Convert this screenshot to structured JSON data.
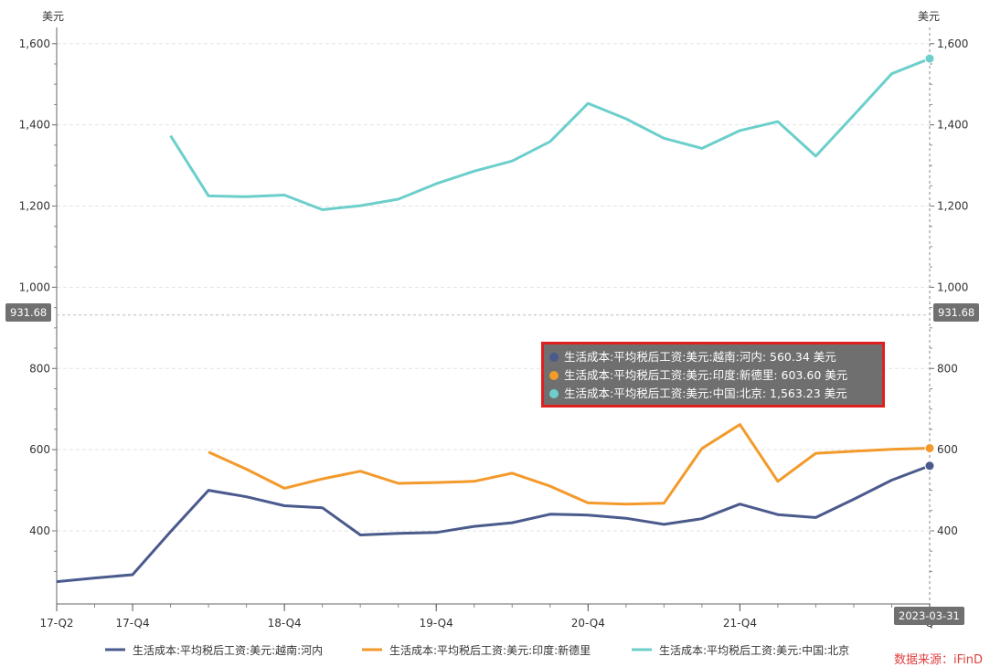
{
  "chart_data": {
    "type": "line",
    "y_unit_left": "美元",
    "y_unit_right": "美元",
    "ylim": [
      220,
      1640
    ],
    "y_ticks": [
      400,
      600,
      800,
      1000,
      1200,
      1400,
      1600
    ],
    "y_tick_labels": [
      "400",
      "600",
      "800",
      "1,000",
      "1,200",
      "1,400",
      "1,600"
    ],
    "y_tick_labels_right": [
      "400",
      "600",
      "800",
      "1,000",
      "1,200",
      "1,400",
      "1,600"
    ],
    "x_labels": [
      "17-Q2",
      "17-Q4",
      "18-Q4",
      "19-Q4",
      "20-Q4",
      "21-Q4",
      "Q"
    ],
    "x_label_index": [
      0,
      2,
      6,
      10,
      14,
      18,
      23
    ],
    "grid": true,
    "series": [
      {
        "name": "生活成本:平均税后工资:美元:越南:河内",
        "color": "#4a5a8c",
        "values": [
          275,
          284,
          292,
          398,
          500,
          484,
          462,
          457,
          390,
          394,
          396,
          411,
          420,
          441,
          439,
          431,
          416,
          430,
          466,
          440,
          433,
          478,
          525,
          560.34
        ]
      },
      {
        "name": "生活成本:平均税后工资:美元:印度:新德里",
        "color": "#f39a2b",
        "values": [
          null,
          null,
          null,
          null,
          594,
          552,
          505,
          528,
          547,
          517,
          519,
          522,
          542,
          510,
          469,
          466,
          468,
          603,
          662,
          522,
          591,
          596,
          601,
          603.6
        ]
      },
      {
        "name": "生活成本:平均税后工资:美元:中国:北京",
        "color": "#6ccfcb",
        "values": [
          null,
          null,
          null,
          1373,
          1225,
          1223,
          1227,
          1191,
          1201,
          1217,
          1255,
          1286,
          1311,
          1359,
          1453,
          1415,
          1367,
          1342,
          1386,
          1408,
          1323,
          1424,
          1526,
          1563.23
        ]
      }
    ],
    "crosshair_value": "931.68",
    "crosshair_value_right": "931.68",
    "crosshair_date": "2023-03-31"
  },
  "tooltip": {
    "rows": [
      {
        "text": "生活成本:平均税后工资:美元:越南:河内: 560.34  美元",
        "color": "#4a5a8c"
      },
      {
        "text": "生活成本:平均税后工资:美元:印度:新德里: 603.60  美元",
        "color": "#f39a2b"
      },
      {
        "text": "生活成本:平均税后工资:美元:中国:北京: 1,563.23  美元",
        "color": "#6ccfcb"
      }
    ]
  },
  "watermark": "数据来源：iFinD"
}
